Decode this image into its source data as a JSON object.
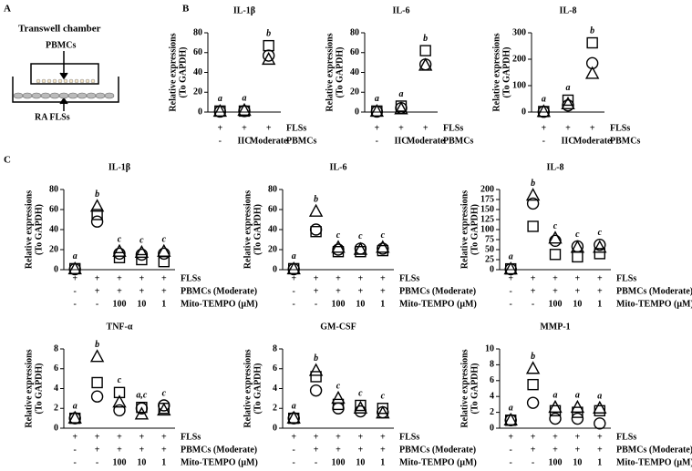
{
  "panel_labels": [
    "A",
    "B",
    "C"
  ],
  "diagram": {
    "title": "Transwell chamber",
    "top_label": "PBMCs",
    "bottom_label": "RA FLSs"
  },
  "chart_data": [
    {
      "type": "scatter",
      "title": "IL-1β",
      "ylabel": [
        "Relative expressions",
        "(To GAPDH)"
      ],
      "ylim": [
        0,
        80
      ],
      "yticks": [
        0,
        20,
        40,
        60,
        80
      ],
      "conditions": [
        {
          "name": "FLSs",
          "values": [
            "+",
            "+",
            "+"
          ]
        },
        {
          "name": "PBMCs",
          "values": [
            "-",
            "IIC",
            "Moderate"
          ]
        }
      ],
      "letters": [
        "a",
        "a",
        "b"
      ],
      "series": [
        {
          "marker": "square",
          "color": "#000000",
          "values": [
            1,
            1,
            67
          ]
        },
        {
          "marker": "circle",
          "color": "#000000",
          "values": [
            0.5,
            1,
            57
          ]
        },
        {
          "marker": "triangle",
          "color": "#000000",
          "values": [
            0.5,
            1.5,
            53
          ]
        }
      ]
    },
    {
      "type": "scatter",
      "title": "IL-6",
      "ylabel": [
        "Relative expressions",
        "(To GAPDH)"
      ],
      "ylim": [
        0,
        80
      ],
      "yticks": [
        0,
        20,
        40,
        60,
        80
      ],
      "conditions": [
        {
          "name": "FLSs",
          "values": [
            "+",
            "+",
            "+"
          ]
        },
        {
          "name": "PBMCs",
          "values": [
            "-",
            "IIC",
            "Moderate"
          ]
        }
      ],
      "letters": [
        "a",
        "a",
        "b"
      ],
      "series": [
        {
          "marker": "square",
          "color": "#000000",
          "values": [
            1,
            6,
            62
          ]
        },
        {
          "marker": "circle",
          "color": "#000000",
          "values": [
            0.5,
            4,
            48
          ]
        },
        {
          "marker": "triangle",
          "color": "#000000",
          "values": [
            0.5,
            3,
            47
          ]
        }
      ]
    },
    {
      "type": "scatter",
      "title": "IL-8",
      "ylabel": [
        "Relative expressions",
        "(To GAPDH)"
      ],
      "ylim": [
        0,
        300
      ],
      "yticks": [
        0,
        100,
        200,
        300
      ],
      "conditions": [
        {
          "name": "FLSs",
          "values": [
            "+",
            "+",
            "+"
          ]
        },
        {
          "name": "PBMCs",
          "values": [
            "-",
            "IIC",
            "Moderate"
          ]
        }
      ],
      "letters": [
        "a",
        "a",
        "b"
      ],
      "series": [
        {
          "marker": "square",
          "color": "#000000",
          "values": [
            2,
            45,
            262
          ]
        },
        {
          "marker": "circle",
          "color": "#000000",
          "values": [
            1,
            25,
            185
          ]
        },
        {
          "marker": "triangle",
          "color": "#000000",
          "values": [
            1,
            30,
            145
          ]
        }
      ]
    },
    {
      "type": "scatter",
      "title": "IL-1β",
      "ylabel": [
        "Relative expressions",
        "(To GAPDH)"
      ],
      "ylim": [
        0,
        80
      ],
      "yticks": [
        0,
        20,
        40,
        60,
        80
      ],
      "conditions": [
        {
          "name": "FLSs",
          "values": [
            "+",
            "+",
            "+",
            "+",
            "+"
          ]
        },
        {
          "name": "PBMCs (Moderate)",
          "values": [
            "-",
            "+",
            "+",
            "+",
            "+"
          ]
        },
        {
          "name": "Mito-TEMPO (μM)",
          "values": [
            "-",
            "-",
            "100",
            "10",
            "1"
          ]
        }
      ],
      "letters": [
        "a",
        "b",
        "c",
        "c",
        "c"
      ],
      "series": [
        {
          "marker": "square",
          "color": "#000000",
          "values": [
            1,
            55,
            12,
            10,
            8
          ]
        },
        {
          "marker": "circle",
          "color": "#000000",
          "values": [
            0.5,
            48,
            16,
            15,
            16
          ]
        },
        {
          "marker": "triangle",
          "color": "#000000",
          "values": [
            0.5,
            63,
            18,
            17,
            18
          ]
        }
      ]
    },
    {
      "type": "scatter",
      "title": "IL-6",
      "ylabel": [
        "Relative expressions",
        "(To GAPDH)"
      ],
      "ylim": [
        0,
        80
      ],
      "yticks": [
        0,
        20,
        40,
        60,
        80
      ],
      "conditions": [
        {
          "name": "FLSs",
          "values": [
            "+",
            "+",
            "+",
            "+",
            "+"
          ]
        },
        {
          "name": "PBMCs (Moderate)",
          "values": [
            "-",
            "+",
            "+",
            "+",
            "+"
          ]
        },
        {
          "name": "Mito-TEMPO (μM)",
          "values": [
            "-",
            "-",
            "100",
            "10",
            "1"
          ]
        }
      ],
      "letters": [
        "a",
        "b",
        "c",
        "c",
        "c"
      ],
      "series": [
        {
          "marker": "square",
          "color": "#000000",
          "values": [
            1,
            38,
            18,
            18,
            19
          ]
        },
        {
          "marker": "circle",
          "color": "#000000",
          "values": [
            0.5,
            40,
            20,
            21,
            21
          ]
        },
        {
          "marker": "triangle",
          "color": "#000000",
          "values": [
            0.5,
            58,
            22,
            20,
            22
          ]
        }
      ]
    },
    {
      "type": "scatter",
      "title": "IL-8",
      "ylabel": [
        "Relative expressions",
        "(To GAPDH)"
      ],
      "ylim": [
        0,
        200
      ],
      "yticks": [
        0,
        25,
        50,
        75,
        100,
        125,
        150,
        175,
        200
      ],
      "conditions": [
        {
          "name": "FLSs",
          "values": [
            "+",
            "+",
            "+",
            "+",
            "+"
          ]
        },
        {
          "name": "PBMCs (Moderate)",
          "values": [
            "-",
            "+",
            "+",
            "+",
            "+"
          ]
        },
        {
          "name": "Mito-TEMPO (μM)",
          "values": [
            "-",
            "-",
            "100",
            "10",
            "1"
          ]
        }
      ],
      "letters": [
        "a",
        "b",
        "c",
        "c",
        "c"
      ],
      "series": [
        {
          "marker": "square",
          "color": "#000000",
          "values": [
            2,
            108,
            38,
            32,
            40
          ]
        },
        {
          "marker": "circle",
          "color": "#000000",
          "values": [
            1,
            165,
            72,
            58,
            62
          ]
        },
        {
          "marker": "triangle",
          "color": "#000000",
          "values": [
            1,
            185,
            78,
            55,
            55
          ]
        }
      ]
    },
    {
      "type": "scatter",
      "title": "TNF-α",
      "ylabel": [
        "Relative expressions",
        "(To GAPDH)"
      ],
      "ylim": [
        0,
        8
      ],
      "yticks": [
        0,
        2,
        4,
        6,
        8
      ],
      "conditions": [
        {
          "name": "FLSs",
          "values": [
            "+",
            "+",
            "+",
            "+",
            "+"
          ]
        },
        {
          "name": "PBMCs (Moderate)",
          "values": [
            "-",
            "+",
            "+",
            "+",
            "+"
          ]
        },
        {
          "name": "Mito-TEMPO (μM)",
          "values": [
            "-",
            "-",
            "100",
            "10",
            "1"
          ]
        }
      ],
      "letters": [
        "a",
        "b",
        "c",
        "a,c",
        "c"
      ],
      "series": [
        {
          "marker": "square",
          "color": "#000000",
          "values": [
            1,
            4.6,
            3.6,
            2.1,
            2.0
          ]
        },
        {
          "marker": "circle",
          "color": "#000000",
          "values": [
            1,
            3.2,
            1.8,
            2.0,
            2.3
          ]
        },
        {
          "marker": "triangle",
          "color": "#000000",
          "values": [
            1,
            7.2,
            2.6,
            1.4,
            1.8
          ]
        }
      ]
    },
    {
      "type": "scatter",
      "title": "GM-CSF",
      "ylabel": [
        "Relative expressions",
        "(To GAPDH)"
      ],
      "ylim": [
        0,
        8
      ],
      "yticks": [
        0,
        2,
        4,
        6,
        8
      ],
      "conditions": [
        {
          "name": "FLSs",
          "values": [
            "+",
            "+",
            "+",
            "+",
            "+"
          ]
        },
        {
          "name": "PBMCs (Moderate)",
          "values": [
            "-",
            "+",
            "+",
            "+",
            "+"
          ]
        },
        {
          "name": "Mito-TEMPO (μM)",
          "values": [
            "-",
            "-",
            "100",
            "10",
            "1"
          ]
        }
      ],
      "letters": [
        "a",
        "b",
        "c",
        "c",
        "c"
      ],
      "series": [
        {
          "marker": "square",
          "color": "#000000",
          "values": [
            1,
            5.2,
            2.4,
            2.3,
            2.0
          ]
        },
        {
          "marker": "circle",
          "color": "#000000",
          "values": [
            1,
            3.8,
            2.0,
            1.7,
            1.6
          ]
        },
        {
          "marker": "triangle",
          "color": "#000000",
          "values": [
            1,
            5.8,
            3.0,
            2.0,
            1.5
          ]
        }
      ]
    },
    {
      "type": "scatter",
      "title": "MMP-1",
      "ylabel": [
        "Relative expressions",
        "(To GAPDH)"
      ],
      "ylim": [
        0,
        10
      ],
      "yticks": [
        0,
        2,
        4,
        6,
        8,
        10
      ],
      "conditions": [
        {
          "name": "FLSs",
          "values": [
            "+",
            "+",
            "+",
            "+",
            "+"
          ]
        },
        {
          "name": "PBMCs (Moderate)",
          "values": [
            "-",
            "+",
            "+",
            "+",
            "+"
          ]
        },
        {
          "name": "Mito-TEMPO (μM)",
          "values": [
            "-",
            "-",
            "100",
            "10",
            "1"
          ]
        }
      ],
      "letters": [
        "a",
        "b",
        "a",
        "a",
        "a"
      ],
      "series": [
        {
          "marker": "square",
          "color": "#000000",
          "values": [
            1,
            5.5,
            2.2,
            2.0,
            2.2
          ]
        },
        {
          "marker": "circle",
          "color": "#000000",
          "values": [
            1,
            3.2,
            1.2,
            1.2,
            0.6
          ]
        },
        {
          "marker": "triangle",
          "color": "#000000",
          "values": [
            1,
            7.5,
            2.6,
            2.6,
            2.5
          ]
        }
      ]
    }
  ]
}
